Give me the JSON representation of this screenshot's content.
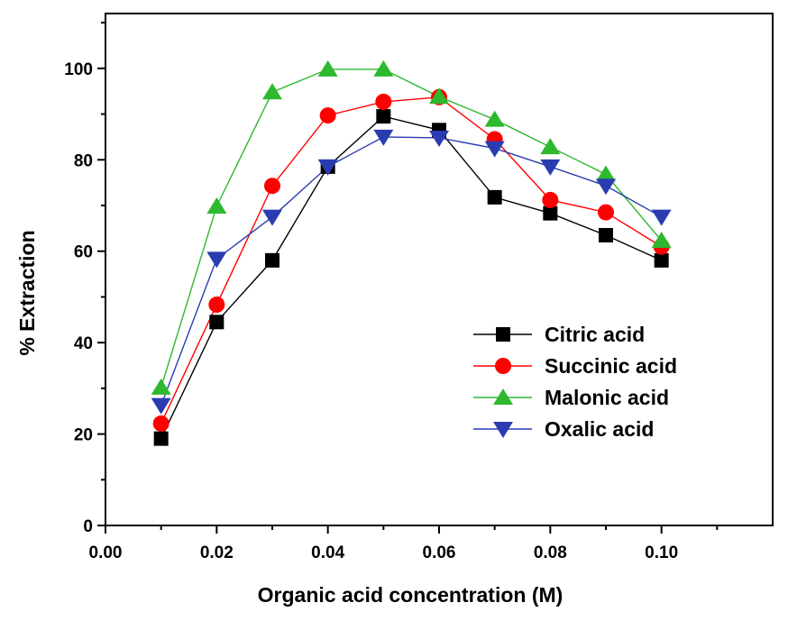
{
  "chart_data": {
    "type": "line",
    "title": "",
    "xlabel": "Organic acid concentration (M)",
    "ylabel": "% Extraction",
    "xlim": [
      0.0,
      0.12
    ],
    "ylim": [
      0,
      112
    ],
    "xticks": [
      "0.00",
      "0.02",
      "0.04",
      "0.06",
      "0.08",
      "0.10"
    ],
    "yticks": [
      "0",
      "20",
      "40",
      "60",
      "80",
      "100"
    ],
    "legend_position": "lower-right",
    "x": [
      0.01,
      0.02,
      0.03,
      0.04,
      0.05,
      0.06,
      0.07,
      0.08,
      0.09,
      0.1
    ],
    "series": [
      {
        "name": "Citric acid",
        "marker": "square",
        "color": "#000000",
        "values": [
          19,
          44.5,
          58,
          78.5,
          89.5,
          86.5,
          71.8,
          68.3,
          63.5,
          58
        ]
      },
      {
        "name": "Succinic acid",
        "marker": "circle",
        "color": "#ff0000",
        "values": [
          22.3,
          48.3,
          74.3,
          89.7,
          92.7,
          93.7,
          84.5,
          71.2,
          68.5,
          61
        ]
      },
      {
        "name": "Malonic acid",
        "marker": "triangle-up",
        "color": "#2eb82e",
        "values": [
          30.2,
          69.8,
          94.8,
          99.8,
          99.8,
          93.8,
          88.8,
          82.8,
          76.8,
          62.3
        ]
      },
      {
        "name": "Oxalic acid",
        "marker": "triangle-down",
        "color": "#2a3cb0",
        "values": [
          26.3,
          58.3,
          67.5,
          78.5,
          85,
          84.8,
          82.5,
          78.5,
          74.3,
          67.5
        ]
      }
    ]
  }
}
